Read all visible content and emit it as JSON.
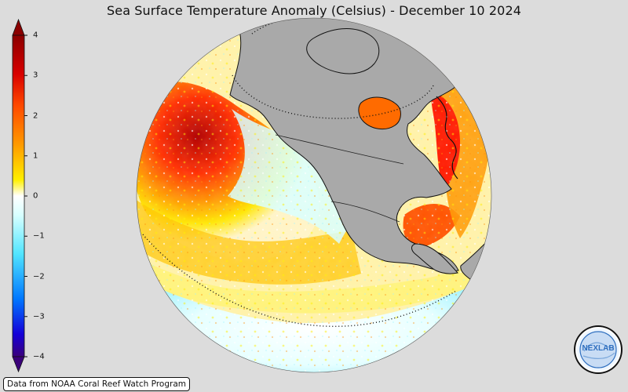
{
  "title": "Sea Surface Temperature Anomaly (Celsius) - December 10 2024",
  "colorbar": {
    "ticks": [
      "4",
      "3",
      "2",
      "1",
      "0",
      "−1",
      "−2",
      "−3",
      "−4"
    ],
    "min": -4,
    "max": 4,
    "colors": {
      "high": "#8b0000",
      "warm": "#ff2400",
      "orange": "#ff9900",
      "yellow": "#ffff00",
      "neutral": "#ffffff",
      "cyan": "#66ffff",
      "blue": "#0077ff",
      "deep": "#2200aa",
      "low": "#3a007a"
    }
  },
  "map": {
    "projection": "orthographic",
    "land_color": "#a9a9a9",
    "ocean_anomaly_colors": [
      "#8b0000",
      "#ff2400",
      "#ff9900",
      "#ffff00",
      "#ffffff",
      "#66ffff",
      "#0077ff"
    ]
  },
  "source": "Data from NOAA Coral Reef Watch Program",
  "logo": {
    "icon": "nexlab-logo-icon",
    "text": "NEXLAB"
  }
}
